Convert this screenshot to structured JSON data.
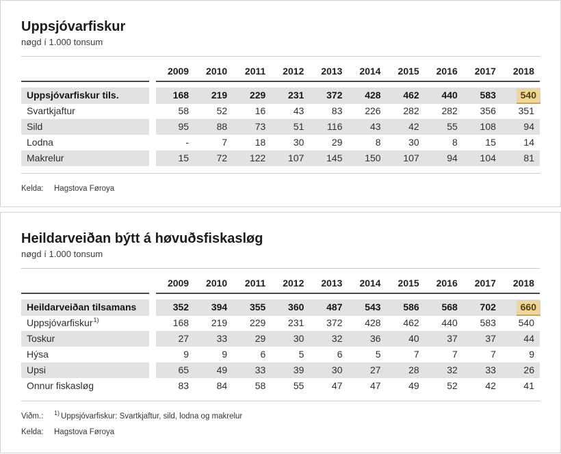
{
  "colors": {
    "panel_border": "#d2d2d2",
    "row_stripe": "#e2e2e2",
    "rule_dark": "#4a4a4a",
    "rule_light": "#cbcbcb",
    "highlight_bg": "#edd59c",
    "highlight_border": "#c9a648",
    "highlight_text": "#51430b"
  },
  "chart_data": [
    {
      "type": "table",
      "title": "Uppsjóvarfiskur",
      "subtitle": "nøgd í 1.000 tonsum",
      "columns": [
        "2009",
        "2010",
        "2011",
        "2012",
        "2013",
        "2014",
        "2015",
        "2016",
        "2017",
        "2018"
      ],
      "rows": [
        {
          "label": "Uppsjóvarfiskur tils.",
          "is_total": true,
          "highlight_last": true,
          "values": [
            168,
            219,
            229,
            231,
            372,
            428,
            462,
            440,
            583,
            540
          ]
        },
        {
          "label": "Svartkjaftur",
          "values": [
            58,
            52,
            16,
            43,
            83,
            226,
            282,
            282,
            356,
            351
          ]
        },
        {
          "label": "Sild",
          "values": [
            95,
            88,
            73,
            51,
            116,
            43,
            42,
            55,
            108,
            94
          ]
        },
        {
          "label": "Lodna",
          "values": [
            "-",
            7,
            18,
            30,
            29,
            8,
            30,
            8,
            15,
            14
          ]
        },
        {
          "label": "Makrelur",
          "values": [
            15,
            72,
            122,
            107,
            145,
            150,
            107,
            94,
            104,
            81
          ]
        }
      ],
      "highlight": {
        "row": "Uppsjóvarfiskur tils.",
        "column": "2018",
        "value": 540
      },
      "footnotes": [
        {
          "label": "Kelda:",
          "sup": "",
          "text": "Hagstova Føroya"
        }
      ]
    },
    {
      "type": "table",
      "title": "Heildarveiðan býtt á høvuðsfiskasløg",
      "subtitle": "nøgd í 1.000 tonsum",
      "columns": [
        "2009",
        "2010",
        "2011",
        "2012",
        "2013",
        "2014",
        "2015",
        "2016",
        "2017",
        "2018"
      ],
      "rows": [
        {
          "label": "Heildarveiðan tilsamans",
          "is_total": true,
          "highlight_last": true,
          "values": [
            352,
            394,
            355,
            360,
            487,
            543,
            586,
            568,
            702,
            660
          ]
        },
        {
          "label": "Uppsjóvarfiskur",
          "sup": "1)",
          "values": [
            168,
            219,
            229,
            231,
            372,
            428,
            462,
            440,
            583,
            540
          ]
        },
        {
          "label": "Toskur",
          "values": [
            27,
            33,
            29,
            30,
            32,
            36,
            40,
            37,
            37,
            44
          ]
        },
        {
          "label": "Hýsa",
          "values": [
            9,
            9,
            6,
            5,
            6,
            5,
            7,
            7,
            7,
            9
          ]
        },
        {
          "label": "Upsi",
          "values": [
            65,
            49,
            33,
            39,
            30,
            27,
            28,
            32,
            33,
            26
          ]
        },
        {
          "label": "Onnur fiskasløg",
          "values": [
            83,
            84,
            58,
            55,
            47,
            47,
            49,
            52,
            42,
            41
          ]
        }
      ],
      "highlight": {
        "row": "Heildarveiðan tilsamans",
        "column": "2018",
        "value": 660
      },
      "footnotes": [
        {
          "label": "Viðm.:",
          "sup": "1)",
          "text": "Uppsjóvarfiskur: Svartkjaftur, sild, lodna og makrelur"
        },
        {
          "label": "Kelda:",
          "sup": "",
          "text": "Hagstova Føroya"
        }
      ]
    }
  ]
}
